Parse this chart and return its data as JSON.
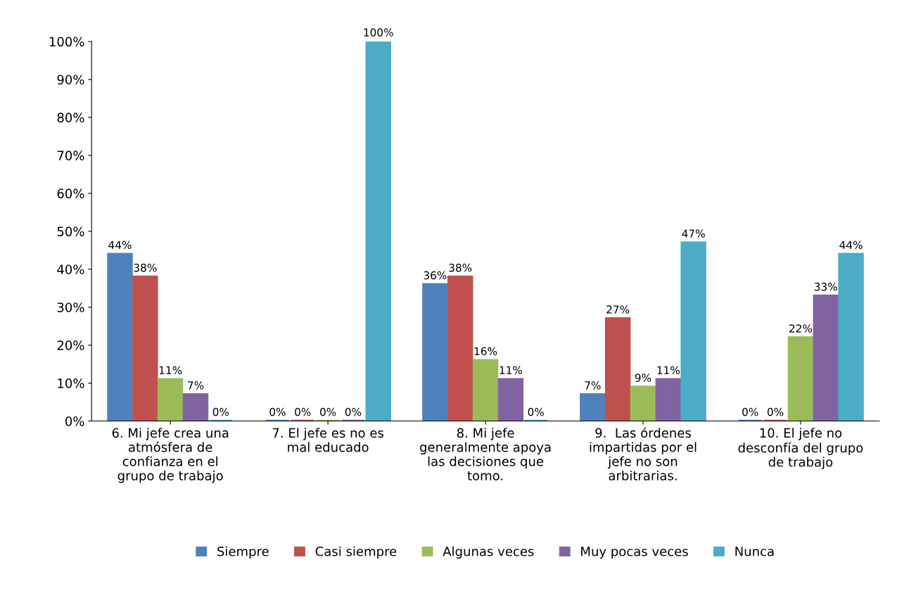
{
  "chart_data": {
    "type": "bar",
    "categories": [
      "6. Mi jefe crea una atmósfera de confianza en el grupo de trabajo",
      "7. El jefe es no es mal educado",
      "8. Mi jefe generalmente apoya las decisiones que tomo.",
      "9.  Las órdenes impartidas por el jefe no son arbitrarias.",
      "10. El jefe no desconfía del grupo de trabajo"
    ],
    "series": [
      {
        "name": "Siempre",
        "color": "#4f81bd",
        "values": [
          44,
          0,
          36,
          7,
          0
        ],
        "value_labels": [
          "44%",
          "0%",
          "36%",
          "7%",
          "0%"
        ]
      },
      {
        "name": "Casi siempre",
        "color": "#c0504d",
        "values": [
          38,
          0,
          38,
          27,
          0
        ],
        "value_labels": [
          "38%",
          "0%",
          "38%",
          "27%",
          "0%"
        ]
      },
      {
        "name": "Algunas veces",
        "color": "#9bbb59",
        "values": [
          11,
          0,
          16,
          9,
          22
        ],
        "value_labels": [
          "11%",
          "0%",
          "16%",
          "9%",
          "22%"
        ]
      },
      {
        "name": "Muy pocas veces",
        "color": "#8064a2",
        "values": [
          7,
          0,
          11,
          11,
          33
        ],
        "value_labels": [
          "7%",
          "0%",
          "11%",
          "11%",
          "33%"
        ]
      },
      {
        "name": "Nunca",
        "color": "#4bacc6",
        "values": [
          0,
          100,
          0,
          47,
          44
        ],
        "value_labels": [
          "0%",
          "100%",
          "0%",
          "47%",
          "44%"
        ]
      }
    ],
    "ylim": [
      0,
      100
    ],
    "yticks": [
      {
        "value": 0,
        "label": "0%"
      },
      {
        "value": 10,
        "label": "10%"
      },
      {
        "value": 20,
        "label": "20%"
      },
      {
        "value": 30,
        "label": "30%"
      },
      {
        "value": 40,
        "label": "40%"
      },
      {
        "value": 50,
        "label": "50%"
      },
      {
        "value": 60,
        "label": "60%"
      },
      {
        "value": 70,
        "label": "70%"
      },
      {
        "value": 80,
        "label": "80%"
      },
      {
        "value": 90,
        "label": "90%"
      },
      {
        "value": 100,
        "label": "100%"
      }
    ],
    "grid": false,
    "legend": "bottom"
  }
}
